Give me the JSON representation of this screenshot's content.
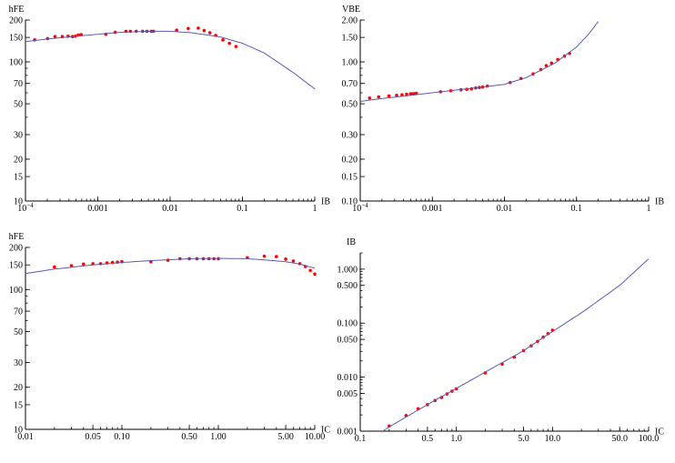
{
  "colors": {
    "fit": "#5a5ab4",
    "points": "#ff0000",
    "axis": "#000000"
  },
  "chart_data": [
    {
      "type": "scatter",
      "xlabel": "IB",
      "ylabel": "hFE",
      "xscale": "log",
      "yscale": "log",
      "xlim": [
        0.0001,
        1
      ],
      "ylim": [
        10,
        200
      ],
      "xticks": [
        {
          "v": 0.0001,
          "label": "10^-4"
        },
        {
          "v": 0.001,
          "label": "0.001"
        },
        {
          "v": 0.01,
          "label": "0.01"
        },
        {
          "v": 0.1,
          "label": "0.1"
        },
        {
          "v": 1,
          "label": "1"
        }
      ],
      "yticks": [
        {
          "v": 10,
          "label": "10"
        },
        {
          "v": 15,
          "label": "15"
        },
        {
          "v": 20,
          "label": "20"
        },
        {
          "v": 30,
          "label": "30"
        },
        {
          "v": 50,
          "label": "50"
        },
        {
          "v": 70,
          "label": "70"
        },
        {
          "v": 100,
          "label": "100"
        },
        {
          "v": 150,
          "label": "150"
        },
        {
          "v": 200,
          "label": "200"
        }
      ],
      "series": [
        {
          "kind": "points",
          "x": [
            0.000134,
            0.000202,
            0.000256,
            0.000323,
            0.000389,
            0.000447,
            0.00049,
            0.000537,
            0.000589,
            0.00129,
            0.00174,
            0.00245,
            0.00282,
            0.0034,
            0.00417,
            0.00479,
            0.0055,
            0.00589,
            0.0123,
            0.0178,
            0.0245,
            0.0295,
            0.0355,
            0.0427,
            0.0537,
            0.0661,
            0.0813
          ],
          "y": [
            144,
            147,
            152,
            152,
            153,
            152,
            153,
            156,
            157,
            158,
            163,
            166,
            166,
            166,
            166,
            166,
            166,
            166,
            169,
            174,
            175,
            168,
            162,
            155,
            144,
            136,
            129
          ]
        },
        {
          "kind": "line",
          "x": [
            0.0001,
            0.0002,
            0.0005,
            0.001,
            0.002,
            0.005,
            0.01,
            0.02,
            0.05,
            0.1,
            0.2,
            0.5,
            1
          ],
          "y": [
            140,
            146,
            153,
            158,
            163,
            166,
            166,
            162,
            151,
            136,
            116,
            84,
            64
          ]
        }
      ]
    },
    {
      "type": "scatter",
      "xlabel": "IB",
      "ylabel": "VBE",
      "xscale": "log",
      "yscale": "log",
      "xlim": [
        0.0001,
        1
      ],
      "ylim": [
        0.1,
        2
      ],
      "xticks": [
        {
          "v": 0.0001,
          "label": "10^-4"
        },
        {
          "v": 0.001,
          "label": "0.001"
        },
        {
          "v": 0.01,
          "label": "0.01"
        },
        {
          "v": 0.1,
          "label": "0.1"
        },
        {
          "v": 1,
          "label": "1"
        }
      ],
      "yticks": [
        {
          "v": 0.1,
          "label": "0.10"
        },
        {
          "v": 0.15,
          "label": "0.15"
        },
        {
          "v": 0.2,
          "label": "0.20"
        },
        {
          "v": 0.3,
          "label": "0.30"
        },
        {
          "v": 0.5,
          "label": "0.50"
        },
        {
          "v": 0.7,
          "label": "0.70"
        },
        {
          "v": 1,
          "label": "1.00"
        },
        {
          "v": 1.5,
          "label": "1.50"
        },
        {
          "v": 2,
          "label": "2.00"
        }
      ],
      "series": [
        {
          "kind": "points",
          "x": [
            0.000135,
            0.00018,
            0.00025,
            0.00032,
            0.00038,
            0.00044,
            0.0005,
            0.00055,
            0.0006,
            0.0013,
            0.0018,
            0.0025,
            0.003,
            0.0035,
            0.004,
            0.0045,
            0.005,
            0.0058,
            0.012,
            0.017,
            0.025,
            0.032,
            0.038,
            0.045,
            0.055,
            0.068,
            0.08
          ],
          "y": [
            0.55,
            0.56,
            0.57,
            0.575,
            0.58,
            0.585,
            0.59,
            0.592,
            0.595,
            0.61,
            0.62,
            0.63,
            0.635,
            0.64,
            0.65,
            0.655,
            0.66,
            0.67,
            0.71,
            0.76,
            0.82,
            0.88,
            0.94,
            0.98,
            1.04,
            1.1,
            1.15
          ]
        },
        {
          "kind": "line",
          "x": [
            0.0001,
            0.0002,
            0.0005,
            0.001,
            0.002,
            0.005,
            0.01,
            0.02,
            0.05,
            0.1,
            0.15,
            0.2
          ],
          "y": [
            0.52,
            0.545,
            0.575,
            0.6,
            0.625,
            0.66,
            0.69,
            0.77,
            0.98,
            1.28,
            1.6,
            1.95
          ]
        }
      ]
    },
    {
      "type": "scatter",
      "xlabel": "IC",
      "ylabel": "hFE",
      "xscale": "log",
      "yscale": "log",
      "xlim": [
        0.01,
        10
      ],
      "ylim": [
        10,
        200
      ],
      "xticks": [
        {
          "v": 0.01,
          "label": "0.01"
        },
        {
          "v": 0.05,
          "label": "0.05"
        },
        {
          "v": 0.1,
          "label": "0.10"
        },
        {
          "v": 0.5,
          "label": "0.50"
        },
        {
          "v": 1,
          "label": "1.00"
        },
        {
          "v": 5,
          "label": "5.00"
        },
        {
          "v": 10,
          "label": "10.00"
        }
      ],
      "yticks": [
        {
          "v": 10,
          "label": "10"
        },
        {
          "v": 15,
          "label": "15"
        },
        {
          "v": 20,
          "label": "20"
        },
        {
          "v": 30,
          "label": "30"
        },
        {
          "v": 50,
          "label": "50"
        },
        {
          "v": 70,
          "label": "70"
        },
        {
          "v": 100,
          "label": "100"
        },
        {
          "v": 150,
          "label": "150"
        },
        {
          "v": 200,
          "label": "200"
        }
      ],
      "series": [
        {
          "kind": "points",
          "x": [
            0.02,
            0.03,
            0.04,
            0.05,
            0.06,
            0.07,
            0.08,
            0.09,
            0.1,
            0.2,
            0.3,
            0.4,
            0.5,
            0.6,
            0.7,
            0.8,
            0.9,
            1.0,
            2.0,
            3.0,
            4.0,
            5.0,
            6.0,
            7.0,
            8.0,
            9.0,
            10.0
          ],
          "y": [
            145,
            148,
            152,
            153,
            153,
            155,
            156,
            157,
            158,
            158,
            162,
            166,
            166,
            166,
            166,
            166,
            166,
            166,
            169,
            173,
            172,
            165,
            160,
            153,
            146,
            137,
            129
          ]
        },
        {
          "kind": "line",
          "x": [
            0.01,
            0.02,
            0.05,
            0.1,
            0.2,
            0.5,
            1,
            2,
            3,
            5,
            7,
            10
          ],
          "y": [
            130,
            140,
            150,
            156,
            161,
            166,
            167,
            166,
            163,
            158,
            152,
            142
          ]
        }
      ]
    },
    {
      "type": "scatter",
      "xlabel": "IC",
      "ylabel": "IB",
      "xscale": "log",
      "yscale": "log",
      "xlim": [
        0.1,
        100
      ],
      "ylim": [
        0.001,
        2
      ],
      "xticks": [
        {
          "v": 0.1,
          "label": "0.1"
        },
        {
          "v": 0.5,
          "label": "0.5"
        },
        {
          "v": 1,
          "label": "1.0"
        },
        {
          "v": 5,
          "label": "5.0"
        },
        {
          "v": 10,
          "label": "10.0"
        },
        {
          "v": 50,
          "label": "50.0"
        },
        {
          "v": 100,
          "label": "100.0"
        }
      ],
      "yticks": [
        {
          "v": 0.001,
          "label": "0.001"
        },
        {
          "v": 0.005,
          "label": "0.005"
        },
        {
          "v": 0.01,
          "label": "0.010"
        },
        {
          "v": 0.05,
          "label": "0.050"
        },
        {
          "v": 0.1,
          "label": "0.100"
        },
        {
          "v": 0.5,
          "label": "0.500"
        },
        {
          "v": 1,
          "label": "1.000"
        }
      ],
      "series": [
        {
          "kind": "points",
          "x": [
            0.2,
            0.3,
            0.4,
            0.5,
            0.6,
            0.7,
            0.8,
            0.9,
            1.0,
            2.0,
            3.0,
            4.0,
            5.0,
            6.0,
            7.0,
            8.0,
            9.0,
            10.0
          ],
          "y": [
            0.00125,
            0.00195,
            0.0026,
            0.0031,
            0.0037,
            0.0042,
            0.0049,
            0.0055,
            0.0061,
            0.012,
            0.0175,
            0.0235,
            0.031,
            0.038,
            0.046,
            0.055,
            0.064,
            0.074
          ]
        },
        {
          "kind": "line",
          "x": [
            0.15,
            0.2,
            0.5,
            1,
            2,
            5,
            10,
            20,
            50,
            100
          ],
          "y": [
            0.00085,
            0.0012,
            0.0031,
            0.0062,
            0.0124,
            0.031,
            0.07,
            0.155,
            0.5,
            1.55
          ]
        }
      ]
    }
  ]
}
